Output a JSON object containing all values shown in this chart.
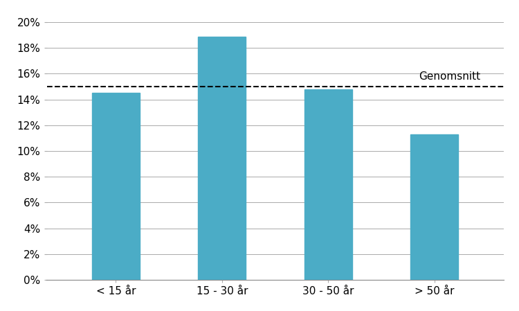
{
  "categories": [
    "< 15 år",
    "15 - 30 år",
    "30 - 50 år",
    "> 50 år"
  ],
  "values": [
    0.145,
    0.189,
    0.148,
    0.113
  ],
  "bar_color": "#4BACC6",
  "average_line": 0.15,
  "average_label": "Genomsnitt",
  "ylim": [
    0,
    0.21
  ],
  "yticks": [
    0.0,
    0.02,
    0.04,
    0.06,
    0.08,
    0.1,
    0.12,
    0.14,
    0.16,
    0.18,
    0.2
  ],
  "background_color": "#ffffff",
  "grid_color": "#aaaaaa",
  "bar_width": 0.45
}
